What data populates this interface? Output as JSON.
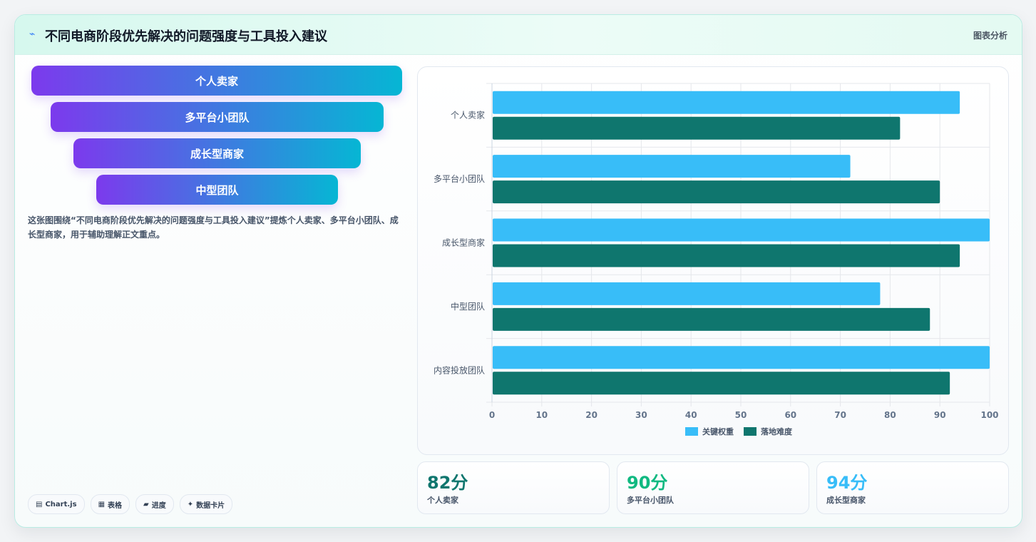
{
  "header": {
    "title": "不同电商阶段优先解决的问题强度与工具投入建议",
    "tag": "图表分析",
    "icon": "sparkle-icon"
  },
  "funnel": [
    "个人卖家",
    "多平台小团队",
    "成长型商家",
    "中型团队"
  ],
  "description": "这张图围绕“不同电商阶段优先解决的问题强度与工具投入建议”提炼个人卖家、多平台小团队、成长型商家，用于辅助理解正文重点。",
  "tags": [
    {
      "icon": "chart-icon",
      "glyph": "▤",
      "label": "Chart.js"
    },
    {
      "icon": "table-icon",
      "glyph": "▦",
      "label": "表格"
    },
    {
      "icon": "progress-icon",
      "glyph": "▰",
      "label": "进度"
    },
    {
      "icon": "card-icon",
      "glyph": "✦",
      "label": "数据卡片"
    }
  ],
  "stats": [
    {
      "value": "82分",
      "label": "个人卖家",
      "color": "#0f766e"
    },
    {
      "value": "90分",
      "label": "多平台小团队",
      "color": "#10b981"
    },
    {
      "value": "94分",
      "label": "成长型商家",
      "color": "#38bdf8"
    }
  ],
  "chart_data": {
    "type": "bar",
    "orientation": "horizontal",
    "categories": [
      "个人卖家",
      "多平台小团队",
      "成长型商家",
      "中型团队",
      "内容投放团队"
    ],
    "series": [
      {
        "name": "关键权重",
        "color": "#38bdf8",
        "values": [
          94,
          72,
          100,
          78,
          100
        ]
      },
      {
        "name": "落地难度",
        "color": "#0f766e",
        "values": [
          82,
          90,
          94,
          88,
          92
        ]
      }
    ],
    "xlim": [
      0,
      100
    ],
    "xticks": [
      0,
      10,
      20,
      30,
      40,
      50,
      60,
      70,
      80,
      90,
      100
    ],
    "grid": true,
    "legend": "bottom"
  }
}
